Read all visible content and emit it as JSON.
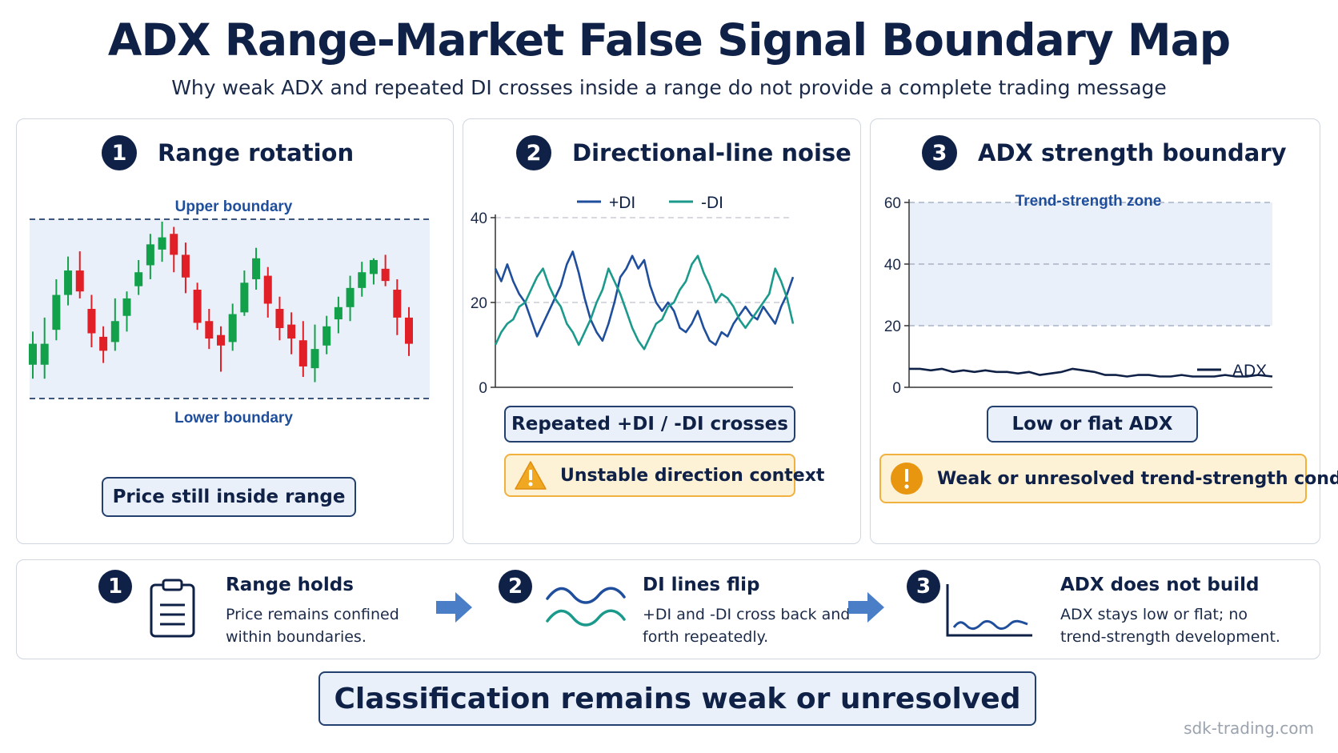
{
  "title": "ADX Range-Market False Signal Boundary Map",
  "subtitle": "Why weak ADX and repeated DI crosses inside a range do not provide a complete trading message",
  "colors": {
    "navy": "#0f2147",
    "di_plus": "#1f4e9c",
    "di_minus": "#1b9a8c",
    "bull": "#12a04a",
    "bear": "#e01f26",
    "warning": "#f0b13f",
    "zone_fill": "#eaf0f9"
  },
  "panels": {
    "range": {
      "number": "1",
      "title": "Range rotation",
      "upper_label": "Upper boundary",
      "lower_label": "Lower boundary",
      "status": "Price still inside range"
    },
    "di": {
      "number": "2",
      "title": "Directional-line noise",
      "legend_plus": "+DI",
      "legend_minus": "-DI",
      "status": "Repeated +DI / -DI crosses",
      "warning": "Unstable direction context",
      "warning_icon": "warning-triangle-icon"
    },
    "adx": {
      "number": "3",
      "title": "ADX strength boundary",
      "zone_label": "Trend-strength zone",
      "legend": "ADX",
      "status": "Low or flat ADX",
      "warning": "Weak or unresolved trend-strength condition",
      "warning_icon": "exclamation-circle-icon"
    }
  },
  "chart_data": [
    {
      "type": "candlestick",
      "name": "range-rotation",
      "ylim": [
        0,
        100
      ],
      "upper_boundary": 100,
      "lower_boundary": 0,
      "candles": [
        {
          "o": 18,
          "c": 30,
          "h": 37,
          "l": 10
        },
        {
          "o": 18,
          "c": 30,
          "h": 45,
          "l": 10
        },
        {
          "o": 38,
          "c": 58,
          "h": 67,
          "l": 32
        },
        {
          "o": 58,
          "c": 72,
          "h": 80,
          "l": 52
        },
        {
          "o": 72,
          "c": 60,
          "h": 83,
          "l": 56
        },
        {
          "o": 50,
          "c": 36,
          "h": 58,
          "l": 28
        },
        {
          "o": 34,
          "c": 26,
          "h": 40,
          "l": 19
        },
        {
          "o": 31,
          "c": 43,
          "h": 56,
          "l": 26
        },
        {
          "o": 46,
          "c": 56,
          "h": 60,
          "l": 37
        },
        {
          "o": 63,
          "c": 71,
          "h": 78,
          "l": 58
        },
        {
          "o": 75,
          "c": 87,
          "h": 93,
          "l": 67
        },
        {
          "o": 84,
          "c": 91,
          "h": 100,
          "l": 77
        },
        {
          "o": 93,
          "c": 81,
          "h": 97,
          "l": 71
        },
        {
          "o": 81,
          "c": 68,
          "h": 88,
          "l": 59
        },
        {
          "o": 61,
          "c": 42,
          "h": 65,
          "l": 38
        },
        {
          "o": 43,
          "c": 33,
          "h": 50,
          "l": 27
        },
        {
          "o": 35,
          "c": 29,
          "h": 40,
          "l": 14
        },
        {
          "o": 31,
          "c": 47,
          "h": 53,
          "l": 26
        },
        {
          "o": 48,
          "c": 65,
          "h": 72,
          "l": 46
        },
        {
          "o": 67,
          "c": 79,
          "h": 85,
          "l": 61
        },
        {
          "o": 69,
          "c": 53,
          "h": 74,
          "l": 45
        },
        {
          "o": 50,
          "c": 39,
          "h": 57,
          "l": 32
        },
        {
          "o": 41,
          "c": 33,
          "h": 48,
          "l": 24
        },
        {
          "o": 32,
          "c": 17,
          "h": 43,
          "l": 11
        },
        {
          "o": 16,
          "c": 27,
          "h": 41,
          "l": 8
        },
        {
          "o": 29,
          "c": 40,
          "h": 46,
          "l": 24
        },
        {
          "o": 44,
          "c": 51,
          "h": 57,
          "l": 36
        },
        {
          "o": 51,
          "c": 62,
          "h": 69,
          "l": 43
        },
        {
          "o": 62,
          "c": 71,
          "h": 77,
          "l": 57
        },
        {
          "o": 70,
          "c": 78,
          "h": 79,
          "l": 64
        },
        {
          "o": 73,
          "c": 66,
          "h": 81,
          "l": 63
        },
        {
          "o": 61,
          "c": 45,
          "h": 67,
          "l": 35
        },
        {
          "o": 45,
          "c": 30,
          "h": 51,
          "l": 23
        }
      ]
    },
    {
      "type": "line",
      "name": "directional-lines",
      "ylim": [
        0,
        40
      ],
      "yticks": [
        0,
        20,
        40
      ],
      "xlim": [
        0,
        100
      ],
      "series": [
        {
          "name": "+DI",
          "x": [
            0,
            2,
            4,
            6,
            8,
            10,
            12,
            14,
            16,
            18,
            20,
            22,
            24,
            26,
            28,
            30,
            32,
            34,
            36,
            38,
            40,
            42,
            44,
            46,
            48,
            50,
            52,
            54,
            56,
            58,
            60,
            62,
            64,
            66,
            68,
            70,
            72,
            74,
            76,
            78,
            80,
            82,
            84,
            86,
            88,
            90,
            92,
            94,
            96,
            98,
            100
          ],
          "y": [
            28,
            25,
            29,
            25,
            22,
            20,
            16,
            12,
            15,
            18,
            21,
            24,
            29,
            32,
            27,
            21,
            16,
            13,
            11,
            15,
            20,
            26,
            28,
            31,
            28,
            30,
            24,
            20,
            18,
            20,
            18,
            14,
            13,
            15,
            18,
            14,
            11,
            10,
            13,
            12,
            15,
            17,
            19,
            17,
            16,
            19,
            17,
            15,
            19,
            22,
            26
          ]
        },
        {
          "name": "-DI",
          "x": [
            0,
            2,
            4,
            6,
            8,
            10,
            12,
            14,
            16,
            18,
            20,
            22,
            24,
            26,
            28,
            30,
            32,
            34,
            36,
            38,
            40,
            42,
            44,
            46,
            48,
            50,
            52,
            54,
            56,
            58,
            60,
            62,
            64,
            66,
            68,
            70,
            72,
            74,
            76,
            78,
            80,
            82,
            84,
            86,
            88,
            90,
            92,
            94,
            96,
            98,
            100
          ],
          "y": [
            10,
            13,
            15,
            16,
            19,
            20,
            23,
            26,
            28,
            24,
            21,
            19,
            15,
            13,
            10,
            13,
            16,
            20,
            23,
            28,
            25,
            22,
            18,
            14,
            11,
            9,
            12,
            15,
            16,
            19,
            20,
            23,
            25,
            29,
            31,
            27,
            24,
            20,
            22,
            21,
            19,
            16,
            14,
            16,
            18,
            20,
            22,
            28,
            25,
            21,
            15
          ]
        }
      ]
    },
    {
      "type": "line",
      "name": "adx-strength",
      "ylim": [
        0,
        60
      ],
      "yticks": [
        0,
        20,
        40,
        60
      ],
      "zone": [
        20,
        60
      ],
      "xlim": [
        0,
        100
      ],
      "series": [
        {
          "name": "ADX",
          "x": [
            0,
            3,
            6,
            9,
            12,
            15,
            18,
            21,
            24,
            27,
            30,
            33,
            36,
            39,
            42,
            45,
            48,
            51,
            54,
            57,
            60,
            63,
            66,
            69,
            72,
            75,
            78,
            81,
            84,
            87,
            90,
            93,
            96,
            100
          ],
          "y": [
            6,
            6,
            5.5,
            6,
            5,
            5.5,
            5,
            5.5,
            5,
            5,
            4.5,
            5,
            4,
            4.5,
            5,
            6,
            5.5,
            5,
            4,
            4,
            3.5,
            4,
            4,
            3.5,
            3.5,
            4,
            3.5,
            3.5,
            3.5,
            4,
            3.5,
            3.5,
            4,
            3.5
          ]
        }
      ]
    }
  ],
  "flow": {
    "steps": [
      {
        "number": "1",
        "title": "Range holds",
        "desc": "Price remains confined within boundaries.",
        "icon": "clipboard-icon"
      },
      {
        "number": "2",
        "title": "DI lines flip",
        "desc": "+DI and -DI cross back and forth repeatedly.",
        "icon": "wave-lines-icon"
      },
      {
        "number": "3",
        "title": "ADX does not build",
        "desc": "ADX stays low or flat; no trend-strength development.",
        "icon": "flat-line-chart-icon"
      }
    ],
    "arrow_icon": "right-arrow-icon"
  },
  "conclusion": "Classification remains weak or unresolved",
  "footer": "sdk-trading.com"
}
